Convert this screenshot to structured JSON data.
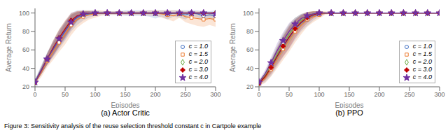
{
  "caption": "Figure 3: Sensitivity analysis of the reuse selection threshold constant c in Cartpole example",
  "chart_data": [
    {
      "type": "line",
      "title": "(a) Actor Critic",
      "xlabel": "Episodes",
      "ylabel": "Average Return",
      "xlim": [
        0,
        300
      ],
      "xticks": [
        0,
        50,
        100,
        150,
        200,
        250,
        300
      ],
      "ylim": [
        20,
        105
      ],
      "yticks": [
        20,
        40,
        60,
        80,
        100
      ],
      "grid": false,
      "legend": "lower right",
      "x": [
        0,
        10,
        20,
        30,
        40,
        50,
        60,
        70,
        80,
        90,
        100,
        110,
        120,
        130,
        140,
        150,
        160,
        170,
        180,
        190,
        200,
        210,
        220,
        230,
        240,
        250,
        260,
        270,
        280,
        290,
        300
      ],
      "series": [
        {
          "name": "c = 1.0",
          "color": "#4472C4",
          "marker": "circle",
          "values": [
            26,
            38,
            50,
            60,
            70,
            80,
            90,
            95,
            98,
            99,
            100,
            100,
            100,
            100,
            100,
            100,
            100,
            100,
            100,
            100,
            99,
            100,
            98,
            100,
            99,
            98,
            100,
            99,
            97,
            98,
            97
          ],
          "lower": [
            24,
            33,
            43,
            52,
            61,
            70,
            80,
            87,
            92,
            95,
            97,
            98,
            98,
            98,
            98,
            97,
            97,
            97,
            97,
            96,
            94,
            96,
            93,
            96,
            95,
            93,
            97,
            95,
            92,
            94,
            91
          ],
          "upper": [
            28,
            43,
            57,
            68,
            79,
            90,
            100,
            103,
            103,
            103,
            103,
            102,
            102,
            102,
            102,
            103,
            103,
            103,
            103,
            103,
            103,
            103,
            103,
            103,
            103,
            103,
            103,
            103,
            102,
            102,
            103
          ]
        },
        {
          "name": "c = 1.5",
          "color": "#ED7D31",
          "marker": "square",
          "values": [
            25,
            35,
            48,
            58,
            68,
            77,
            87,
            93,
            96,
            98,
            99,
            100,
            100,
            100,
            100,
            100,
            100,
            100,
            100,
            100,
            100,
            99,
            98,
            97,
            99,
            96,
            95,
            94,
            93,
            94,
            93
          ],
          "lower": [
            23,
            30,
            41,
            49,
            58,
            66,
            76,
            84,
            89,
            93,
            95,
            97,
            98,
            98,
            98,
            98,
            98,
            98,
            98,
            97,
            97,
            95,
            93,
            91,
            95,
            90,
            88,
            86,
            85,
            87,
            85
          ],
          "upper": [
            27,
            40,
            55,
            67,
            78,
            88,
            98,
            102,
            103,
            103,
            103,
            103,
            102,
            102,
            102,
            102,
            102,
            102,
            102,
            103,
            103,
            103,
            103,
            103,
            103,
            102,
            102,
            102,
            101,
            101,
            101
          ]
        },
        {
          "name": "c = 2.0",
          "color": "#70AD47",
          "marker": "diamond",
          "values": [
            25,
            37,
            50,
            62,
            73,
            82,
            91,
            96,
            99,
            100,
            100,
            100,
            100,
            100,
            100,
            100,
            100,
            100,
            100,
            100,
            100,
            100,
            100,
            100,
            100,
            100,
            100,
            100,
            100,
            100,
            100
          ],
          "lower": [
            23,
            33,
            44,
            54,
            64,
            73,
            83,
            91,
            96,
            98,
            99,
            99,
            99,
            99,
            99,
            99,
            99,
            99,
            99,
            99,
            99,
            99,
            99,
            99,
            99,
            99,
            99,
            99,
            99,
            99,
            99
          ],
          "upper": [
            27,
            41,
            56,
            70,
            82,
            91,
            99,
            101,
            102,
            102,
            101,
            101,
            101,
            101,
            101,
            101,
            101,
            101,
            101,
            101,
            101,
            101,
            101,
            101,
            101,
            101,
            101,
            101,
            101,
            101,
            101
          ]
        },
        {
          "name": "c = 3.0",
          "color": "#C00000",
          "marker": "plus",
          "values": [
            25,
            37,
            50,
            62,
            73,
            83,
            92,
            97,
            99,
            100,
            100,
            100,
            100,
            100,
            100,
            100,
            100,
            100,
            100,
            100,
            100,
            100,
            100,
            100,
            100,
            100,
            100,
            100,
            100,
            100,
            100
          ],
          "lower": [
            23,
            33,
            44,
            54,
            64,
            74,
            84,
            92,
            96,
            98,
            99,
            99,
            99,
            99,
            99,
            99,
            99,
            99,
            99,
            99,
            99,
            99,
            99,
            99,
            99,
            99,
            99,
            99,
            99,
            99,
            99
          ],
          "upper": [
            27,
            41,
            56,
            70,
            82,
            92,
            100,
            102,
            102,
            102,
            101,
            101,
            101,
            101,
            101,
            101,
            101,
            101,
            101,
            101,
            101,
            101,
            101,
            101,
            101,
            101,
            101,
            101,
            101,
            101,
            101
          ]
        },
        {
          "name": "c = 4.0",
          "color": "#7030A0",
          "marker": "star",
          "values": [
            25,
            37,
            50,
            61,
            72,
            81,
            90,
            96,
            99,
            100,
            100,
            100,
            100,
            100,
            100,
            100,
            100,
            100,
            100,
            100,
            100,
            100,
            100,
            100,
            100,
            100,
            100,
            100,
            100,
            100,
            99
          ],
          "lower": [
            23,
            33,
            44,
            53,
            63,
            72,
            82,
            91,
            96,
            98,
            99,
            99,
            99,
            99,
            99,
            99,
            99,
            99,
            99,
            99,
            99,
            99,
            99,
            99,
            99,
            99,
            99,
            99,
            99,
            99,
            97
          ],
          "upper": [
            27,
            41,
            56,
            69,
            81,
            90,
            98,
            101,
            102,
            102,
            101,
            101,
            101,
            101,
            101,
            101,
            101,
            101,
            101,
            101,
            101,
            101,
            101,
            101,
            101,
            101,
            101,
            101,
            101,
            101,
            101
          ]
        }
      ]
    },
    {
      "type": "line",
      "title": "(b) PPO",
      "xlabel": "Episodes",
      "ylabel": "Average Return",
      "xlim": [
        0,
        300
      ],
      "xticks": [
        0,
        50,
        100,
        150,
        200,
        250,
        300
      ],
      "ylim": [
        20,
        105
      ],
      "yticks": [
        20,
        40,
        60,
        80,
        100
      ],
      "grid": false,
      "legend": "lower right",
      "x": [
        0,
        10,
        20,
        30,
        40,
        50,
        60,
        70,
        80,
        90,
        100,
        110,
        120,
        130,
        140,
        150,
        160,
        170,
        180,
        190,
        200,
        210,
        220,
        230,
        240,
        250,
        260,
        270,
        280,
        290,
        300
      ],
      "series": [
        {
          "name": "c = 1.0",
          "color": "#4472C4",
          "marker": "circle",
          "values": [
            24,
            30,
            40,
            52,
            63,
            73,
            82,
            89,
            93,
            97,
            99,
            100,
            100,
            100,
            100,
            100,
            100,
            100,
            100,
            100,
            100,
            100,
            100,
            100,
            100,
            100,
            100,
            100,
            100,
            100,
            100
          ],
          "lower": [
            22,
            25,
            32,
            42,
            52,
            61,
            71,
            80,
            86,
            92,
            96,
            99,
            99,
            99,
            99,
            100,
            100,
            100,
            100,
            100,
            100,
            100,
            100,
            100,
            100,
            100,
            100,
            100,
            100,
            100,
            100
          ],
          "upper": [
            26,
            35,
            48,
            62,
            74,
            85,
            93,
            98,
            100,
            102,
            102,
            101,
            101,
            101,
            101,
            100,
            100,
            100,
            100,
            100,
            100,
            100,
            100,
            100,
            100,
            100,
            100,
            100,
            100,
            100,
            100
          ]
        },
        {
          "name": "c = 1.5",
          "color": "#ED7D31",
          "marker": "square",
          "values": [
            23,
            29,
            39,
            50,
            61,
            71,
            80,
            87,
            93,
            96,
            98,
            100,
            100,
            100,
            100,
            100,
            100,
            100,
            100,
            100,
            100,
            100,
            100,
            100,
            100,
            100,
            100,
            100,
            100,
            100,
            100
          ],
          "lower": [
            21,
            24,
            31,
            40,
            49,
            58,
            68,
            77,
            85,
            90,
            94,
            98,
            99,
            100,
            100,
            100,
            100,
            100,
            100,
            100,
            100,
            100,
            100,
            100,
            100,
            100,
            100,
            100,
            100,
            100,
            100
          ],
          "upper": [
            25,
            34,
            47,
            60,
            73,
            84,
            92,
            97,
            101,
            102,
            102,
            102,
            101,
            100,
            100,
            100,
            100,
            100,
            100,
            100,
            100,
            100,
            100,
            100,
            100,
            100,
            100,
            100,
            100,
            100,
            100
          ]
        },
        {
          "name": "c = 2.0",
          "color": "#70AD47",
          "marker": "diamond",
          "values": [
            24,
            32,
            43,
            55,
            67,
            77,
            86,
            92,
            96,
            99,
            100,
            100,
            100,
            100,
            100,
            100,
            100,
            100,
            100,
            100,
            100,
            100,
            100,
            100,
            100,
            100,
            100,
            100,
            100,
            100,
            100
          ],
          "lower": [
            22,
            28,
            36,
            46,
            57,
            66,
            77,
            85,
            91,
            96,
            98,
            99,
            100,
            100,
            100,
            100,
            100,
            100,
            100,
            100,
            100,
            100,
            100,
            100,
            100,
            100,
            100,
            100,
            100,
            100,
            100
          ],
          "upper": [
            26,
            36,
            50,
            64,
            77,
            88,
            95,
            99,
            101,
            102,
            102,
            101,
            100,
            100,
            100,
            100,
            100,
            100,
            100,
            100,
            100,
            100,
            100,
            100,
            100,
            100,
            100,
            100,
            100,
            100,
            100
          ]
        },
        {
          "name": "c = 3.0",
          "color": "#C00000",
          "marker": "plus",
          "values": [
            24,
            31,
            41,
            53,
            64,
            74,
            83,
            90,
            95,
            98,
            100,
            100,
            100,
            100,
            100,
            100,
            100,
            100,
            100,
            100,
            100,
            100,
            100,
            100,
            100,
            100,
            100,
            100,
            100,
            100,
            100
          ],
          "lower": [
            22,
            27,
            34,
            44,
            53,
            62,
            73,
            82,
            89,
            94,
            98,
            99,
            100,
            100,
            100,
            100,
            100,
            100,
            100,
            100,
            100,
            100,
            100,
            100,
            100,
            100,
            100,
            100,
            100,
            100,
            100
          ],
          "upper": [
            26,
            35,
            48,
            62,
            75,
            86,
            93,
            98,
            101,
            102,
            102,
            101,
            100,
            100,
            100,
            100,
            100,
            100,
            100,
            100,
            100,
            100,
            100,
            100,
            100,
            100,
            100,
            100,
            100,
            100,
            100
          ]
        },
        {
          "name": "c = 4.0",
          "color": "#7030A0",
          "marker": "star",
          "values": [
            25,
            34,
            46,
            59,
            70,
            80,
            88,
            94,
            97,
            99,
            100,
            100,
            100,
            100,
            100,
            100,
            100,
            100,
            100,
            100,
            100,
            100,
            100,
            100,
            100,
            100,
            100,
            100,
            100,
            100,
            100
          ],
          "lower": [
            23,
            30,
            40,
            51,
            61,
            71,
            81,
            89,
            93,
            97,
            99,
            100,
            100,
            100,
            100,
            100,
            100,
            100,
            100,
            100,
            100,
            100,
            100,
            100,
            100,
            100,
            100,
            100,
            100,
            100,
            100
          ],
          "upper": [
            27,
            38,
            52,
            67,
            79,
            89,
            95,
            99,
            101,
            101,
            101,
            100,
            100,
            100,
            100,
            100,
            100,
            100,
            100,
            100,
            100,
            100,
            100,
            100,
            100,
            100,
            100,
            100,
            100,
            100,
            100
          ]
        }
      ]
    }
  ]
}
